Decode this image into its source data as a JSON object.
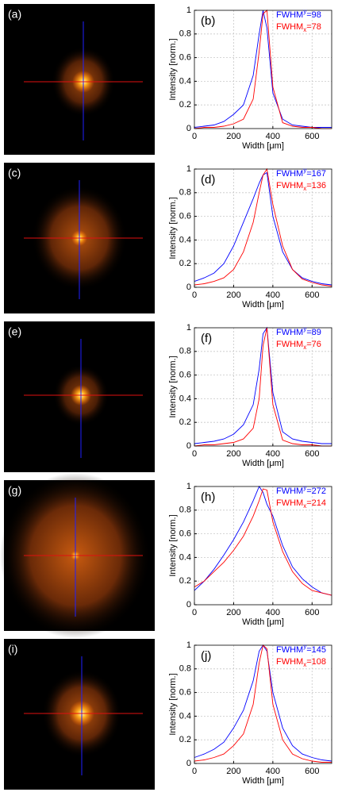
{
  "chart_data": [
    {
      "type": "line",
      "image_label": "(a)",
      "panel_label": "(b)",
      "xlabel": "Width [μm]",
      "ylabel": "Intensity [norm.]",
      "xlim": [
        0,
        700
      ],
      "ylim": [
        0,
        1
      ],
      "xticks": [
        0,
        200,
        400,
        600
      ],
      "yticks": [
        0,
        0.2,
        0.4,
        0.6,
        0.8,
        1
      ],
      "grid": true,
      "x": [
        0,
        50,
        100,
        150,
        200,
        250,
        300,
        330,
        350,
        370,
        400,
        450,
        500,
        550,
        600,
        650,
        700
      ],
      "series": [
        {
          "name": "FWHM",
          "subscript": "y",
          "annotation": "=98",
          "color": "#0000ff",
          "values": [
            0.01,
            0.02,
            0.03,
            0.06,
            0.12,
            0.2,
            0.45,
            0.8,
            1,
            0.85,
            0.3,
            0.08,
            0.03,
            0.02,
            0.01,
            0.01,
            0.01
          ]
        },
        {
          "name": "FWHM",
          "subscript": "x",
          "annotation": "=78",
          "color": "#ff0000",
          "values": [
            0,
            0.01,
            0.01,
            0.02,
            0.04,
            0.08,
            0.25,
            0.65,
            0.97,
            1,
            0.35,
            0.05,
            0.02,
            0.01,
            0.01,
            0,
            0
          ]
        }
      ]
    },
    {
      "type": "line",
      "image_label": "(c)",
      "panel_label": "(d)",
      "xlabel": "Width [μm]",
      "ylabel": "Intensity [norm.]",
      "xlim": [
        0,
        700
      ],
      "ylim": [
        0,
        1
      ],
      "xticks": [
        0,
        200,
        400,
        600
      ],
      "yticks": [
        0,
        0.2,
        0.4,
        0.6,
        0.8,
        1
      ],
      "grid": true,
      "x": [
        0,
        50,
        100,
        150,
        200,
        250,
        300,
        330,
        350,
        370,
        400,
        450,
        500,
        550,
        600,
        650,
        700
      ],
      "series": [
        {
          "name": "FWHM",
          "subscript": "y",
          "annotation": "=167",
          "color": "#0000ff",
          "values": [
            0.05,
            0.08,
            0.12,
            0.2,
            0.35,
            0.55,
            0.75,
            0.88,
            0.95,
            0.97,
            0.6,
            0.3,
            0.15,
            0.08,
            0.05,
            0.03,
            0.02
          ]
        },
        {
          "name": "FWHM",
          "subscript": "x",
          "annotation": "=136",
          "color": "#ff0000",
          "values": [
            0.02,
            0.03,
            0.05,
            0.08,
            0.15,
            0.3,
            0.55,
            0.8,
            0.95,
            1,
            0.7,
            0.35,
            0.15,
            0.07,
            0.04,
            0.02,
            0.01
          ]
        }
      ]
    },
    {
      "type": "line",
      "image_label": "(e)",
      "panel_label": "(f)",
      "xlabel": "Width [μm]",
      "ylabel": "Intensity [norm.]",
      "xlim": [
        0,
        700
      ],
      "ylim": [
        0,
        1
      ],
      "xticks": [
        0,
        200,
        400,
        600
      ],
      "yticks": [
        0,
        0.2,
        0.4,
        0.6,
        0.8,
        1
      ],
      "grid": true,
      "x": [
        0,
        50,
        100,
        150,
        200,
        250,
        300,
        330,
        350,
        370,
        400,
        450,
        500,
        550,
        600,
        650,
        700
      ],
      "series": [
        {
          "name": "FWHM",
          "subscript": "y",
          "annotation": "=89",
          "color": "#0000ff",
          "values": [
            0.02,
            0.03,
            0.04,
            0.06,
            0.1,
            0.18,
            0.35,
            0.65,
            0.95,
            1,
            0.45,
            0.12,
            0.06,
            0.04,
            0.03,
            0.02,
            0.02
          ]
        },
        {
          "name": "FWHM",
          "subscript": "x",
          "annotation": "=76",
          "color": "#ff0000",
          "values": [
            0,
            0.01,
            0.01,
            0.02,
            0.03,
            0.06,
            0.15,
            0.4,
            0.85,
            1,
            0.35,
            0.05,
            0.02,
            0.01,
            0.01,
            0,
            0
          ]
        }
      ]
    },
    {
      "type": "line",
      "image_label": "(g)",
      "panel_label": "(h)",
      "xlabel": "Width [μm]",
      "ylabel": "Intensity [norm.]",
      "xlim": [
        0,
        700
      ],
      "ylim": [
        0,
        1
      ],
      "xticks": [
        0,
        200,
        400,
        600
      ],
      "yticks": [
        0,
        0.2,
        0.4,
        0.6,
        0.8,
        1
      ],
      "grid": true,
      "x": [
        0,
        50,
        100,
        150,
        200,
        250,
        300,
        330,
        350,
        370,
        400,
        450,
        500,
        550,
        600,
        650,
        700
      ],
      "series": [
        {
          "name": "FWHM",
          "subscript": "y",
          "annotation": "=272",
          "color": "#0000ff",
          "values": [
            0.12,
            0.2,
            0.3,
            0.42,
            0.55,
            0.7,
            0.88,
            1,
            0.95,
            0.85,
            0.75,
            0.5,
            0.32,
            0.22,
            0.15,
            0.1,
            0.08
          ]
        },
        {
          "name": "FWHM",
          "subscript": "x",
          "annotation": "=214",
          "color": "#ff0000",
          "values": [
            0.15,
            0.2,
            0.28,
            0.36,
            0.46,
            0.58,
            0.75,
            0.88,
            0.98,
            0.97,
            0.7,
            0.45,
            0.28,
            0.18,
            0.12,
            0.1,
            0.08
          ]
        }
      ]
    },
    {
      "type": "line",
      "image_label": "(i)",
      "panel_label": "(j)",
      "xlabel": "Width [μm]",
      "ylabel": "Intensity [norm.]",
      "xlim": [
        0,
        700
      ],
      "ylim": [
        0,
        1
      ],
      "xticks": [
        0,
        200,
        400,
        600
      ],
      "yticks": [
        0,
        0.2,
        0.4,
        0.6,
        0.8,
        1
      ],
      "grid": true,
      "x": [
        0,
        50,
        100,
        150,
        200,
        250,
        300,
        330,
        350,
        370,
        400,
        450,
        500,
        550,
        600,
        650,
        700
      ],
      "series": [
        {
          "name": "FWHM",
          "subscript": "y",
          "annotation": "=145",
          "color": "#0000ff",
          "values": [
            0.05,
            0.08,
            0.12,
            0.18,
            0.3,
            0.45,
            0.7,
            0.95,
            1,
            0.95,
            0.6,
            0.3,
            0.15,
            0.08,
            0.05,
            0.03,
            0.02
          ]
        },
        {
          "name": "FWHM",
          "subscript": "x",
          "annotation": "=108",
          "color": "#ff0000",
          "values": [
            0.02,
            0.03,
            0.05,
            0.08,
            0.15,
            0.25,
            0.5,
            0.85,
            1,
            0.97,
            0.5,
            0.2,
            0.08,
            0.04,
            0.02,
            0.01,
            0.01
          ]
        }
      ]
    }
  ]
}
